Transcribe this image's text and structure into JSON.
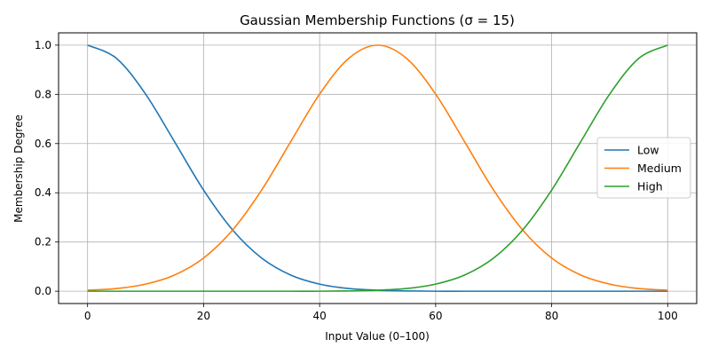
{
  "chart_data": {
    "type": "line",
    "title": "Gaussian Membership Functions (σ = 15)",
    "xlabel": "Input Value (0–100)",
    "ylabel": "Membership Degree",
    "xlim": [
      -5,
      105
    ],
    "ylim": [
      -0.05,
      1.05
    ],
    "xticks": [
      0,
      20,
      40,
      60,
      80,
      100
    ],
    "yticks": [
      0.0,
      0.2,
      0.4,
      0.6,
      0.8,
      1.0
    ],
    "xtick_labels": [
      "0",
      "20",
      "40",
      "60",
      "80",
      "100"
    ],
    "ytick_labels": [
      "0.0",
      "0.2",
      "0.4",
      "0.6",
      "0.8",
      "1.0"
    ],
    "grid": true,
    "legend_position": "center-right",
    "x": [
      0,
      5,
      10,
      15,
      20,
      25,
      30,
      35,
      40,
      45,
      50,
      55,
      60,
      65,
      70,
      75,
      80,
      85,
      90,
      95,
      100
    ],
    "series": [
      {
        "name": "Low",
        "color": "#1f77b4",
        "values": [
          1.0,
          0.946,
          0.801,
          0.607,
          0.411,
          0.249,
          0.135,
          0.066,
          0.029,
          0.011,
          0.004,
          0.001,
          0.0,
          0.0,
          0.0,
          0.0,
          0.0,
          0.0,
          0.0,
          0.0,
          0.0
        ]
      },
      {
        "name": "Medium",
        "color": "#ff7f0e",
        "values": [
          0.004,
          0.011,
          0.029,
          0.066,
          0.135,
          0.249,
          0.411,
          0.607,
          0.801,
          0.946,
          1.0,
          0.946,
          0.801,
          0.607,
          0.411,
          0.249,
          0.135,
          0.066,
          0.029,
          0.011,
          0.004
        ]
      },
      {
        "name": "High",
        "color": "#2ca02c",
        "values": [
          0.0,
          0.0,
          0.0,
          0.0,
          0.0,
          0.0,
          0.0,
          0.0,
          0.0,
          0.001,
          0.004,
          0.011,
          0.029,
          0.066,
          0.135,
          0.249,
          0.411,
          0.607,
          0.801,
          0.946,
          1.0
        ]
      }
    ]
  }
}
